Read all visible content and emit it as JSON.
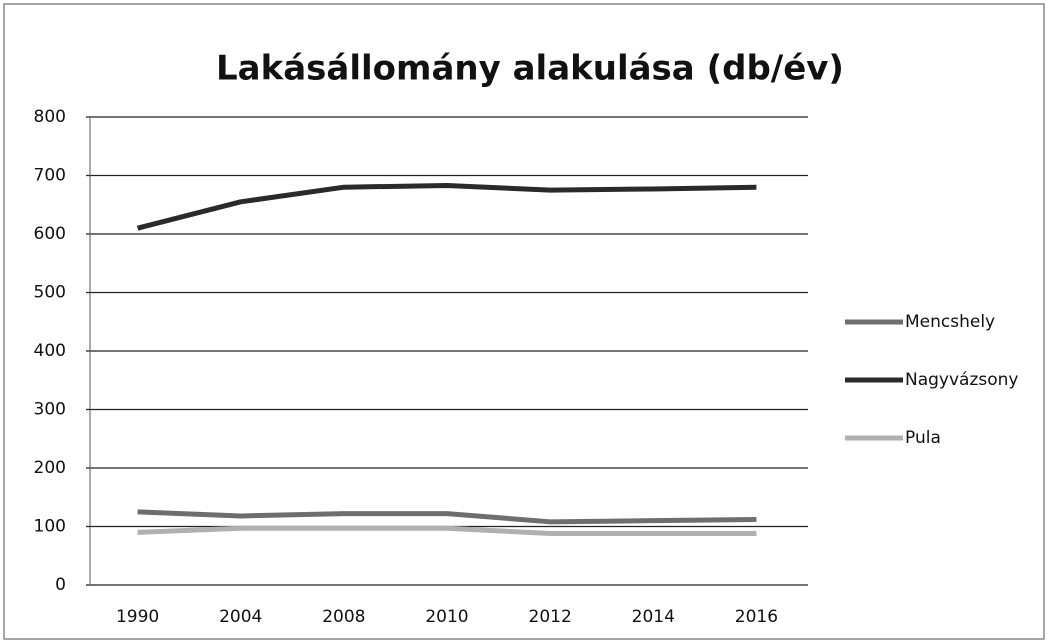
{
  "chart_data": {
    "type": "line",
    "title": "Lakásállomány alakulása (db/év)",
    "categories": [
      "1990",
      "2004",
      "2008",
      "2010",
      "2012",
      "2014",
      "2016"
    ],
    "series": [
      {
        "name": "Mencshely",
        "color": "#6e6e6e",
        "values": [
          125,
          118,
          122,
          122,
          108,
          110,
          112
        ]
      },
      {
        "name": "Nagyvázsony",
        "color": "#2a2a2a",
        "values": [
          610,
          655,
          680,
          683,
          675,
          677,
          680
        ]
      },
      {
        "name": "Pula",
        "color": "#b0b0b0",
        "values": [
          90,
          97,
          97,
          97,
          88,
          88,
          88
        ]
      }
    ],
    "ylim": [
      0,
      800
    ],
    "yticks": [
      0,
      100,
      200,
      300,
      400,
      500,
      600,
      700,
      800
    ],
    "grid": true,
    "legend": "right"
  }
}
